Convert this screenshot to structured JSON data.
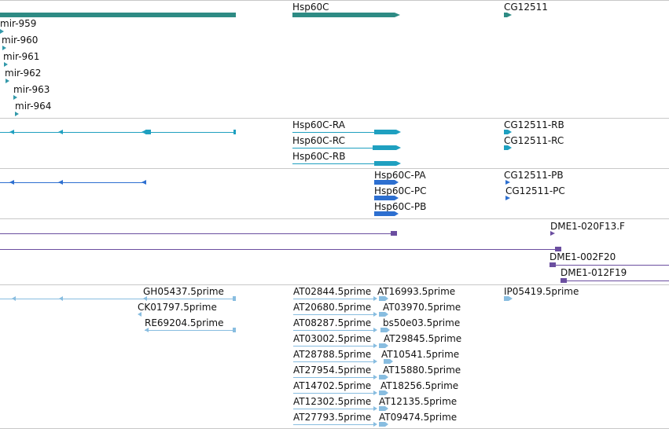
{
  "colors": {
    "gene": "#2e8b84",
    "mirna": "#3399aa",
    "transcript": "#1fa0c0",
    "protein": "#2d6fd0",
    "est_feature": "#6b4ea0",
    "cdna": "#88bde0"
  },
  "tracks": {
    "genes": {
      "hsp60c": "Hsp60C",
      "cg12511": "CG12511",
      "mirs": [
        "mir-959",
        "mir-960",
        "mir-961",
        "mir-962",
        "mir-963",
        "mir-964"
      ]
    },
    "transcripts": [
      "Hsp60C-RA",
      "Hsp60C-RC",
      "Hsp60C-RB",
      "CG12511-RB",
      "CG12511-RC"
    ],
    "proteins": [
      "Hsp60C-PA",
      "Hsp60C-PC",
      "Hsp60C-PB",
      "CG12511-PB",
      "CG12511-PC"
    ],
    "ests": [
      "DME1-020F13.F",
      "DME1-002F20",
      "DME1-012F19"
    ],
    "cdnas": {
      "left": [
        "GH05437.5prime",
        "CK01797.5prime",
        "RE69204.5prime"
      ],
      "mid_left": [
        "AT02844.5prime",
        "AT20680.5prime",
        "AT08287.5prime",
        "AT03002.5prime",
        "AT28788.5prime",
        "AT27954.5prime",
        "AT14702.5prime",
        "AT12302.5prime",
        "AT27793.5prime"
      ],
      "mid_right": [
        "AT16993.5prime",
        "AT03970.5prime",
        "bs50e03.5prime",
        "AT29845.5prime",
        "AT10541.5prime",
        "AT15880.5prime",
        "AT18256.5prime",
        "AT12135.5prime",
        "AT09474.5prime"
      ],
      "right": "IP05419.5prime"
    }
  }
}
